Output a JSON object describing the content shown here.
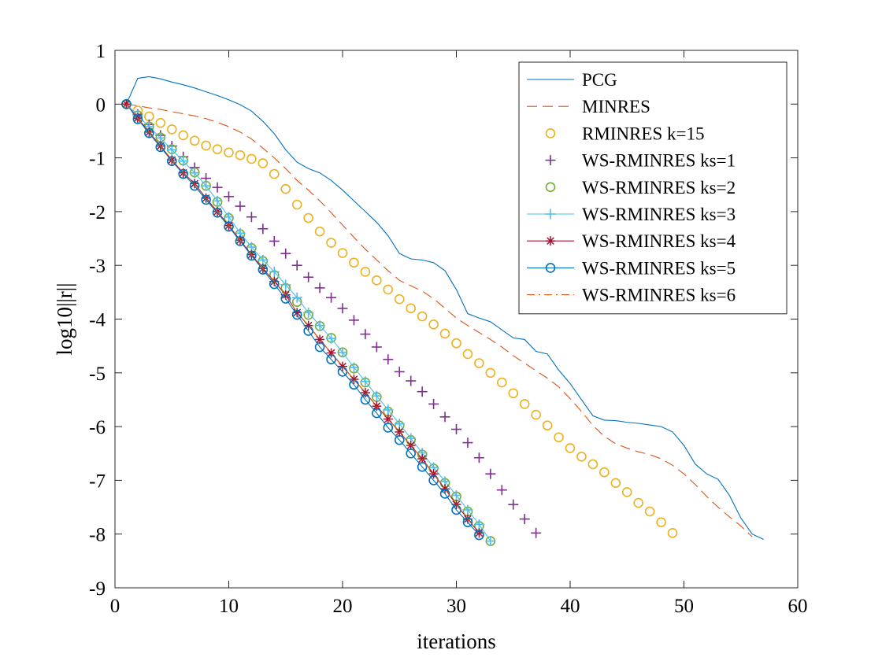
{
  "chart_data": {
    "type": "line",
    "title": "",
    "xlabel": "iterations",
    "ylabel": "log10||r||",
    "xlim": [
      0,
      60
    ],
    "ylim": [
      -9,
      1
    ],
    "xticks": [
      0,
      10,
      20,
      30,
      40,
      50,
      60
    ],
    "yticks": [
      1,
      0,
      -1,
      -2,
      -3,
      -4,
      -5,
      -6,
      -7,
      -8,
      -9
    ],
    "xtick_labels": [
      "0",
      "10",
      "20",
      "30",
      "40",
      "50",
      "60"
    ],
    "ytick_labels": [
      "1",
      "0",
      "-1",
      "-2",
      "-3",
      "-4",
      "-5",
      "-6",
      "-7",
      "-8",
      "-9"
    ],
    "grid": false,
    "legend_position": "top-right",
    "series": [
      {
        "name": "PCG",
        "style": "solid-line",
        "color": "#0072BD",
        "x": [
          1,
          2,
          3,
          4,
          5,
          6,
          7,
          8,
          9,
          10,
          11,
          12,
          13,
          14,
          15,
          16,
          17,
          18,
          19,
          20,
          21,
          22,
          23,
          24,
          25,
          26,
          27,
          28,
          29,
          30,
          31,
          32,
          33,
          34,
          35,
          36,
          37,
          38,
          39,
          40,
          41,
          42,
          43,
          44,
          45,
          46,
          47,
          48,
          49,
          50,
          51,
          52,
          53,
          54,
          55,
          56,
          57
        ],
        "y": [
          0.0,
          0.48,
          0.51,
          0.47,
          0.41,
          0.36,
          0.3,
          0.23,
          0.16,
          0.08,
          -0.01,
          -0.13,
          -0.32,
          -0.55,
          -0.85,
          -1.08,
          -1.2,
          -1.28,
          -1.42,
          -1.6,
          -1.8,
          -2.0,
          -2.2,
          -2.45,
          -2.78,
          -2.88,
          -2.9,
          -2.95,
          -3.1,
          -3.45,
          -3.9,
          -3.98,
          -4.05,
          -4.2,
          -4.35,
          -4.38,
          -4.6,
          -4.65,
          -4.95,
          -5.2,
          -5.5,
          -5.8,
          -5.88,
          -5.89,
          -5.92,
          -5.94,
          -5.97,
          -6.0,
          -6.1,
          -6.35,
          -6.7,
          -6.88,
          -6.98,
          -7.28,
          -7.7,
          -8.0,
          -8.1
        ]
      },
      {
        "name": "MINRES",
        "style": "dashed-line",
        "color": "#D95319",
        "x": [
          1,
          2,
          3,
          4,
          5,
          6,
          7,
          8,
          9,
          10,
          11,
          12,
          13,
          14,
          15,
          16,
          17,
          18,
          19,
          20,
          21,
          22,
          23,
          24,
          25,
          26,
          27,
          28,
          29,
          30,
          31,
          32,
          33,
          34,
          35,
          36,
          37,
          38,
          39,
          40,
          41,
          42,
          43,
          44,
          45,
          46,
          47,
          48,
          49,
          50,
          51,
          52,
          53,
          54,
          55,
          56
        ],
        "y": [
          0.0,
          -0.03,
          -0.07,
          -0.1,
          -0.14,
          -0.18,
          -0.22,
          -0.27,
          -0.34,
          -0.42,
          -0.52,
          -0.65,
          -0.82,
          -1.0,
          -1.2,
          -1.42,
          -1.6,
          -1.8,
          -2.02,
          -2.25,
          -2.48,
          -2.7,
          -2.9,
          -3.1,
          -3.28,
          -3.38,
          -3.48,
          -3.62,
          -3.8,
          -3.98,
          -4.12,
          -4.25,
          -4.38,
          -4.52,
          -4.68,
          -4.82,
          -4.96,
          -5.1,
          -5.26,
          -5.48,
          -5.72,
          -5.98,
          -6.18,
          -6.32,
          -6.4,
          -6.47,
          -6.52,
          -6.6,
          -6.72,
          -6.88,
          -7.08,
          -7.3,
          -7.5,
          -7.68,
          -7.85,
          -8.05
        ]
      },
      {
        "name": "RMINRES k=15",
        "style": "circle-markers",
        "color": "#EDB120",
        "x": [
          1,
          2,
          3,
          4,
          5,
          6,
          7,
          8,
          9,
          10,
          11,
          12,
          13,
          14,
          15,
          16,
          17,
          18,
          19,
          20,
          21,
          22,
          23,
          24,
          25,
          26,
          27,
          28,
          29,
          30,
          31,
          32,
          33,
          34,
          35,
          36,
          37,
          38,
          39,
          40,
          41,
          42,
          43,
          44,
          45,
          46,
          47,
          48,
          49
        ],
        "y": [
          0.0,
          -0.12,
          -0.23,
          -0.35,
          -0.47,
          -0.58,
          -0.68,
          -0.77,
          -0.84,
          -0.9,
          -0.95,
          -1.02,
          -1.1,
          -1.3,
          -1.58,
          -1.87,
          -2.12,
          -2.37,
          -2.58,
          -2.77,
          -2.95,
          -3.12,
          -3.28,
          -3.45,
          -3.63,
          -3.8,
          -3.95,
          -4.1,
          -4.27,
          -4.45,
          -4.65,
          -4.82,
          -5.0,
          -5.18,
          -5.38,
          -5.58,
          -5.78,
          -5.98,
          -6.2,
          -6.4,
          -6.56,
          -6.7,
          -6.85,
          -7.05,
          -7.22,
          -7.42,
          -7.58,
          -7.78,
          -7.98
        ]
      },
      {
        "name": "WS-RMINRES ks=1",
        "style": "plus-markers",
        "color": "#7E2F8E",
        "x": [
          1,
          2,
          3,
          4,
          5,
          6,
          7,
          8,
          9,
          10,
          11,
          12,
          13,
          14,
          15,
          16,
          17,
          18,
          19,
          20,
          21,
          22,
          23,
          24,
          25,
          26,
          27,
          28,
          29,
          30,
          31,
          32,
          33,
          34,
          35,
          36,
          37
        ],
        "y": [
          0.0,
          -0.19,
          -0.38,
          -0.58,
          -0.78,
          -0.98,
          -1.18,
          -1.38,
          -1.55,
          -1.72,
          -1.9,
          -2.1,
          -2.32,
          -2.55,
          -2.78,
          -3.0,
          -3.22,
          -3.42,
          -3.6,
          -3.8,
          -4.02,
          -4.28,
          -4.52,
          -4.75,
          -4.98,
          -5.15,
          -5.35,
          -5.58,
          -5.82,
          -6.05,
          -6.3,
          -6.58,
          -6.88,
          -7.18,
          -7.45,
          -7.72,
          -7.98
        ]
      },
      {
        "name": "WS-RMINRES ks=2",
        "style": "circle-markers",
        "color": "#77AC30",
        "x": [
          1,
          2,
          3,
          4,
          5,
          6,
          7,
          8,
          9,
          10,
          11,
          12,
          13,
          14,
          15,
          16,
          17,
          18,
          19,
          20,
          21,
          22,
          23,
          24,
          25,
          26,
          27,
          28,
          29,
          30,
          31,
          32,
          33
        ],
        "y": [
          0.0,
          -0.21,
          -0.42,
          -0.62,
          -0.84,
          -1.05,
          -1.27,
          -1.52,
          -1.82,
          -2.12,
          -2.42,
          -2.68,
          -2.92,
          -3.18,
          -3.42,
          -3.68,
          -3.92,
          -4.13,
          -4.35,
          -4.62,
          -4.92,
          -5.18,
          -5.45,
          -5.72,
          -5.98,
          -6.25,
          -6.52,
          -6.78,
          -7.05,
          -7.3,
          -7.58,
          -7.85,
          -8.13
        ]
      },
      {
        "name": "WS-RMINRES ks=3",
        "style": "plus-line",
        "color": "#4DBEEE",
        "x": [
          1,
          2,
          3,
          4,
          5,
          6,
          7,
          8,
          9,
          10,
          11,
          12,
          13,
          14,
          15,
          16,
          17,
          18,
          19,
          20,
          21,
          22,
          23,
          24,
          25,
          26,
          27,
          28,
          29,
          30,
          31,
          32,
          33
        ],
        "y": [
          0.0,
          -0.21,
          -0.42,
          -0.63,
          -0.85,
          -1.06,
          -1.28,
          -1.52,
          -1.8,
          -2.1,
          -2.4,
          -2.66,
          -2.9,
          -3.12,
          -3.36,
          -3.6,
          -3.88,
          -4.12,
          -4.36,
          -4.62,
          -4.9,
          -5.16,
          -5.43,
          -5.69,
          -5.95,
          -6.22,
          -6.49,
          -6.76,
          -7.02,
          -7.28,
          -7.55,
          -7.82,
          -8.13
        ]
      },
      {
        "name": "WS-RMINRES ks=4",
        "style": "asterisk-line",
        "color": "#A2142F",
        "x": [
          1,
          2,
          3,
          4,
          5,
          6,
          7,
          8,
          9,
          10,
          11,
          12,
          13,
          14,
          15,
          16,
          17,
          18,
          19,
          20,
          21,
          22,
          23,
          24,
          25,
          26,
          27,
          28,
          29,
          30,
          31,
          32
        ],
        "y": [
          0.0,
          -0.26,
          -0.52,
          -0.78,
          -1.04,
          -1.28,
          -1.48,
          -1.75,
          -2.0,
          -2.26,
          -2.53,
          -2.8,
          -3.06,
          -3.3,
          -3.55,
          -3.88,
          -4.12,
          -4.38,
          -4.63,
          -4.88,
          -5.12,
          -5.37,
          -5.62,
          -5.86,
          -6.1,
          -6.35,
          -6.6,
          -6.88,
          -7.16,
          -7.45,
          -7.72,
          -7.98
        ]
      },
      {
        "name": "WS-RMINRES ks=5",
        "style": "circle-line",
        "color": "#0072BD",
        "x": [
          1,
          2,
          3,
          4,
          5,
          6,
          7,
          8,
          9,
          10,
          11,
          12,
          13,
          14,
          15,
          16,
          17,
          18,
          19,
          20,
          21,
          22,
          23,
          24,
          25,
          26,
          27,
          28,
          29,
          30,
          31,
          32
        ],
        "y": [
          0.0,
          -0.28,
          -0.54,
          -0.8,
          -1.06,
          -1.3,
          -1.52,
          -1.78,
          -2.02,
          -2.28,
          -2.55,
          -2.82,
          -3.08,
          -3.35,
          -3.62,
          -3.92,
          -4.22,
          -4.52,
          -4.75,
          -4.98,
          -5.22,
          -5.5,
          -5.75,
          -6.02,
          -6.25,
          -6.5,
          -6.75,
          -7.0,
          -7.25,
          -7.55,
          -7.78,
          -8.02
        ]
      },
      {
        "name": "WS-RMINRES ks=6",
        "style": "dashdot-line",
        "color": "#D95319",
        "x": [
          1,
          2,
          3,
          4,
          5,
          6,
          7,
          8,
          9,
          10,
          11,
          12,
          13,
          14,
          15,
          16,
          17,
          18,
          19,
          20,
          21,
          22,
          23,
          24,
          25,
          26,
          27,
          28,
          29,
          30,
          31,
          32
        ],
        "y": [
          0.0,
          -0.26,
          -0.52,
          -0.78,
          -1.04,
          -1.28,
          -1.48,
          -1.75,
          -2.0,
          -2.26,
          -2.53,
          -2.8,
          -3.06,
          -3.3,
          -3.55,
          -3.88,
          -4.12,
          -4.38,
          -4.63,
          -4.88,
          -5.12,
          -5.37,
          -5.62,
          -5.86,
          -6.1,
          -6.35,
          -6.6,
          -6.88,
          -7.16,
          -7.45,
          -7.72,
          -7.98
        ]
      }
    ]
  }
}
